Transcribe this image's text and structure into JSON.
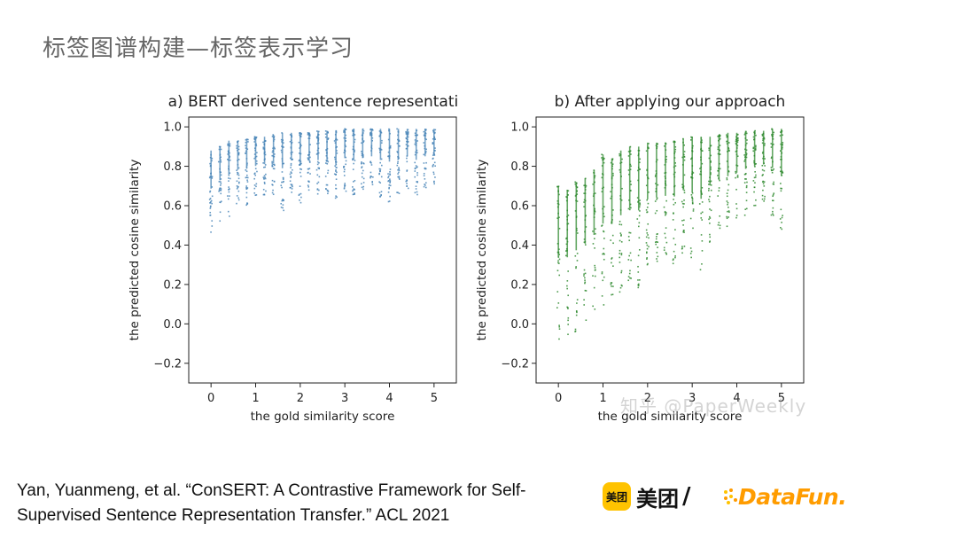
{
  "slide": {
    "title": "标签图谱构建—标签表示学习"
  },
  "citation": {
    "line1": "Yan, Yuanmeng, et al. “ConSERT: A Contrastive Framework for Self-",
    "line2": "Supervised Sentence Representation Transfer.” ACL 2021"
  },
  "logos": {
    "meituan_badge": "美团",
    "meituan_text": "美团",
    "slash": "/",
    "datafun": "DataFun."
  },
  "watermark": "知乎 @PaperWeekly",
  "colors": {
    "series_a": "#4a86b8",
    "series_b": "#2f8a2f",
    "logo_orange": "#ff9c00",
    "logo_yellow": "#ffc300"
  },
  "chart_data": [
    {
      "type": "scatter",
      "title": "a) BERT derived sentence representation",
      "xlabel": "the gold similarity score",
      "ylabel": "the predicted cosine similarity",
      "xlim": [
        -0.5,
        5.5
      ],
      "ylim": [
        -0.3,
        1.05
      ],
      "xticks": [
        "0",
        "1",
        "2",
        "3",
        "4",
        "5"
      ],
      "yticks": [
        "1.0",
        "0.8",
        "0.6",
        "0.4",
        "0.2",
        "0.0",
        "−0.2"
      ],
      "grid": false,
      "series": [
        {
          "color": "#4a86b8",
          "ranges_by_gold_score": [
            {
              "x": 0.0,
              "y_min": 0.45,
              "y_max": 0.88
            },
            {
              "x": 0.2,
              "y_min": 0.52,
              "y_max": 0.9
            },
            {
              "x": 0.4,
              "y_min": 0.53,
              "y_max": 0.93
            },
            {
              "x": 0.6,
              "y_min": 0.6,
              "y_max": 0.93
            },
            {
              "x": 0.8,
              "y_min": 0.6,
              "y_max": 0.94
            },
            {
              "x": 1.0,
              "y_min": 0.62,
              "y_max": 0.95
            },
            {
              "x": 1.2,
              "y_min": 0.64,
              "y_max": 0.95
            },
            {
              "x": 1.4,
              "y_min": 0.64,
              "y_max": 0.96
            },
            {
              "x": 1.6,
              "y_min": 0.57,
              "y_max": 0.97
            },
            {
              "x": 1.8,
              "y_min": 0.66,
              "y_max": 0.97
            },
            {
              "x": 2.0,
              "y_min": 0.6,
              "y_max": 0.97
            },
            {
              "x": 2.2,
              "y_min": 0.66,
              "y_max": 0.97
            },
            {
              "x": 2.4,
              "y_min": 0.65,
              "y_max": 0.98
            },
            {
              "x": 2.6,
              "y_min": 0.66,
              "y_max": 0.98
            },
            {
              "x": 2.8,
              "y_min": 0.6,
              "y_max": 0.98
            },
            {
              "x": 3.0,
              "y_min": 0.66,
              "y_max": 0.99
            },
            {
              "x": 3.2,
              "y_min": 0.64,
              "y_max": 0.99
            },
            {
              "x": 3.4,
              "y_min": 0.66,
              "y_max": 0.99
            },
            {
              "x": 3.6,
              "y_min": 0.68,
              "y_max": 0.99
            },
            {
              "x": 3.8,
              "y_min": 0.64,
              "y_max": 0.99
            },
            {
              "x": 4.0,
              "y_min": 0.62,
              "y_max": 0.99
            },
            {
              "x": 4.2,
              "y_min": 0.66,
              "y_max": 0.99
            },
            {
              "x": 4.4,
              "y_min": 0.68,
              "y_max": 0.99
            },
            {
              "x": 4.6,
              "y_min": 0.64,
              "y_max": 0.99
            },
            {
              "x": 4.8,
              "y_min": 0.68,
              "y_max": 0.99
            },
            {
              "x": 5.0,
              "y_min": 0.7,
              "y_max": 0.99
            }
          ]
        }
      ]
    },
    {
      "type": "scatter",
      "title": "b) After applying our approach",
      "xlabel": "the gold similarity score",
      "ylabel": "the predicted cosine similarity",
      "xlim": [
        -0.5,
        5.5
      ],
      "ylim": [
        -0.3,
        1.05
      ],
      "xticks": [
        "0",
        "1",
        "2",
        "3",
        "4",
        "5"
      ],
      "yticks": [
        "1.0",
        "0.8",
        "0.6",
        "0.4",
        "0.2",
        "0.0",
        "−0.2"
      ],
      "grid": false,
      "series": [
        {
          "color": "#2f8a2f",
          "ranges_by_gold_score": [
            {
              "x": 0.0,
              "y_min": -0.1,
              "y_max": 0.7
            },
            {
              "x": 0.2,
              "y_min": -0.08,
              "y_max": 0.68
            },
            {
              "x": 0.4,
              "y_min": -0.05,
              "y_max": 0.72
            },
            {
              "x": 0.6,
              "y_min": 0.0,
              "y_max": 0.74
            },
            {
              "x": 0.8,
              "y_min": 0.05,
              "y_max": 0.78
            },
            {
              "x": 1.0,
              "y_min": 0.08,
              "y_max": 0.86
            },
            {
              "x": 1.2,
              "y_min": 0.1,
              "y_max": 0.84
            },
            {
              "x": 1.4,
              "y_min": 0.15,
              "y_max": 0.88
            },
            {
              "x": 1.6,
              "y_min": 0.2,
              "y_max": 0.9
            },
            {
              "x": 1.8,
              "y_min": 0.18,
              "y_max": 0.9
            },
            {
              "x": 2.0,
              "y_min": 0.28,
              "y_max": 0.92
            },
            {
              "x": 2.2,
              "y_min": 0.3,
              "y_max": 0.92
            },
            {
              "x": 2.4,
              "y_min": 0.32,
              "y_max": 0.92
            },
            {
              "x": 2.6,
              "y_min": 0.3,
              "y_max": 0.93
            },
            {
              "x": 2.8,
              "y_min": 0.36,
              "y_max": 0.94
            },
            {
              "x": 3.0,
              "y_min": 0.32,
              "y_max": 0.95
            },
            {
              "x": 3.2,
              "y_min": 0.25,
              "y_max": 0.95
            },
            {
              "x": 3.4,
              "y_min": 0.4,
              "y_max": 0.95
            },
            {
              "x": 3.6,
              "y_min": 0.45,
              "y_max": 0.96
            },
            {
              "x": 3.8,
              "y_min": 0.48,
              "y_max": 0.97
            },
            {
              "x": 4.0,
              "y_min": 0.52,
              "y_max": 0.97
            },
            {
              "x": 4.2,
              "y_min": 0.55,
              "y_max": 0.98
            },
            {
              "x": 4.4,
              "y_min": 0.58,
              "y_max": 0.98
            },
            {
              "x": 4.6,
              "y_min": 0.6,
              "y_max": 0.98
            },
            {
              "x": 4.8,
              "y_min": 0.55,
              "y_max": 0.99
            },
            {
              "x": 5.0,
              "y_min": 0.46,
              "y_max": 0.99
            }
          ]
        }
      ]
    }
  ]
}
